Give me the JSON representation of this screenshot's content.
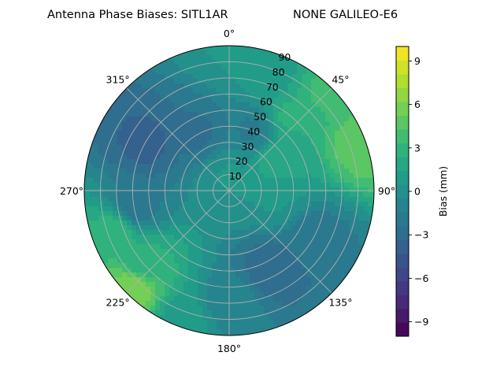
{
  "chart_data": {
    "type": "heatmap",
    "subtype": "polar-contour",
    "title": "Antenna Phase Biases: SITL1AR",
    "subtitle": "NONE GALILEO-E6",
    "angular_axis": {
      "zero_location": "top",
      "direction": "clockwise",
      "tick_labels": [
        "0°",
        "45°",
        "90°",
        "135°",
        "180°",
        "225°",
        "270°",
        "315°"
      ]
    },
    "radial_axis": {
      "range": [
        0,
        90
      ],
      "tick_labels": [
        "10",
        "20",
        "30",
        "40",
        "50",
        "60",
        "70",
        "80",
        "90"
      ]
    },
    "colorbar": {
      "label": "Bias (mm)",
      "range": [
        -10,
        10
      ],
      "tick_labels": [
        "−9",
        "−6",
        "−3",
        "0",
        "3",
        "6",
        "9"
      ],
      "colormap": "viridis",
      "levels": 21
    },
    "grid": true,
    "field_features": [
      {
        "azimuth": 0,
        "zenith": 90,
        "bias": 0.5
      },
      {
        "azimuth": 20,
        "zenith": 75,
        "bias": 1.0
      },
      {
        "azimuth": 40,
        "zenith": 60,
        "bias": 2.5
      },
      {
        "azimuth": 45,
        "zenith": 85,
        "bias": 3.5
      },
      {
        "azimuth": 70,
        "zenith": 88,
        "bias": 5.0
      },
      {
        "azimuth": 60,
        "zenith": 35,
        "bias": 2.0
      },
      {
        "azimuth": 100,
        "zenith": 30,
        "bias": 0.5
      },
      {
        "azimuth": 120,
        "zenith": 60,
        "bias": -2.0
      },
      {
        "azimuth": 150,
        "zenith": 55,
        "bias": -3.0
      },
      {
        "azimuth": 180,
        "zenith": 70,
        "bias": -1.0
      },
      {
        "azimuth": 200,
        "zenith": 85,
        "bias": 1.0
      },
      {
        "azimuth": 225,
        "zenith": 85,
        "bias": 6.0
      },
      {
        "azimuth": 230,
        "zenith": 70,
        "bias": 2.5
      },
      {
        "azimuth": 250,
        "zenith": 75,
        "bias": 3.0
      },
      {
        "azimuth": 260,
        "zenith": 60,
        "bias": -2.0
      },
      {
        "azimuth": 300,
        "zenith": 60,
        "bias": -3.5
      },
      {
        "azimuth": 330,
        "zenith": 40,
        "bias": -2.5
      },
      {
        "azimuth": 20,
        "zenith": 40,
        "bias": -1.5
      },
      {
        "azimuth": 0,
        "zenith": 10,
        "bias": 0.5
      }
    ]
  },
  "colors": {
    "viridis": [
      "#440154",
      "#482878",
      "#3e4989",
      "#31688e",
      "#26828e",
      "#1f9e89",
      "#35b779",
      "#6ece58",
      "#b5de2b",
      "#fde725"
    ],
    "grid": "#b0b0b0",
    "axis": "#000000"
  }
}
